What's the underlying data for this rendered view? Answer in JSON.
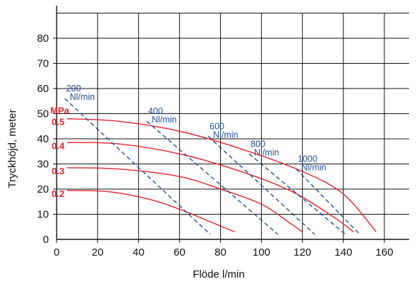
{
  "chart_data": {
    "type": "line",
    "xlabel": "Flöde l/min",
    "ylabel": "Tryckhöjd, meter",
    "xlim": [
      0,
      172
    ],
    "ylim": [
      0,
      90
    ],
    "x_ticks": [
      "0",
      "20",
      "40",
      "60",
      "80",
      "100",
      "120",
      "140",
      "160"
    ],
    "y_ticks": [
      "0",
      "10",
      "20",
      "30",
      "40",
      "50",
      "60",
      "70",
      "80"
    ],
    "grid": true,
    "colors": {
      "pressure": "#e8232a",
      "air": "#1f4e9c"
    },
    "pressure_unit_label": "MPa",
    "pressure_curves": [
      {
        "label": "0.5",
        "points": [
          [
            5,
            48
          ],
          [
            30,
            47
          ],
          [
            60,
            43
          ],
          [
            90,
            36
          ],
          [
            120,
            27
          ],
          [
            140,
            18
          ],
          [
            156,
            3
          ]
        ]
      },
      {
        "label": "0.4",
        "points": [
          [
            5,
            38.5
          ],
          [
            30,
            38
          ],
          [
            60,
            34
          ],
          [
            90,
            27
          ],
          [
            115,
            19
          ],
          [
            135,
            9
          ],
          [
            145,
            3
          ]
        ]
      },
      {
        "label": "0.3",
        "points": [
          [
            5,
            28.5
          ],
          [
            30,
            28
          ],
          [
            60,
            25
          ],
          [
            80,
            20
          ],
          [
            100,
            14
          ],
          [
            113,
            7
          ],
          [
            120,
            3
          ]
        ]
      },
      {
        "label": "0.2",
        "points": [
          [
            5,
            19.5
          ],
          [
            25,
            19
          ],
          [
            45,
            16
          ],
          [
            60,
            12
          ],
          [
            75,
            7
          ],
          [
            87,
            3
          ]
        ]
      }
    ],
    "air_lines": [
      {
        "label_num": "200",
        "label_unit": "Nl/min",
        "points": [
          [
            4,
            56
          ],
          [
            75,
            2
          ]
        ]
      },
      {
        "label_num": "400",
        "label_unit": "Nl/min",
        "points": [
          [
            44,
            47
          ],
          [
            108,
            2
          ]
        ]
      },
      {
        "label_num": "600",
        "label_unit": "Nl/min",
        "points": [
          [
            74,
            41
          ],
          [
            126,
            2
          ]
        ]
      },
      {
        "label_num": "800",
        "label_unit": "Nl/min",
        "points": [
          [
            94,
            34
          ],
          [
            141,
            2
          ]
        ]
      },
      {
        "label_num": "1000",
        "label_unit": "Nl/min",
        "points": [
          [
            117,
            28
          ],
          [
            148,
            2
          ]
        ]
      }
    ]
  }
}
